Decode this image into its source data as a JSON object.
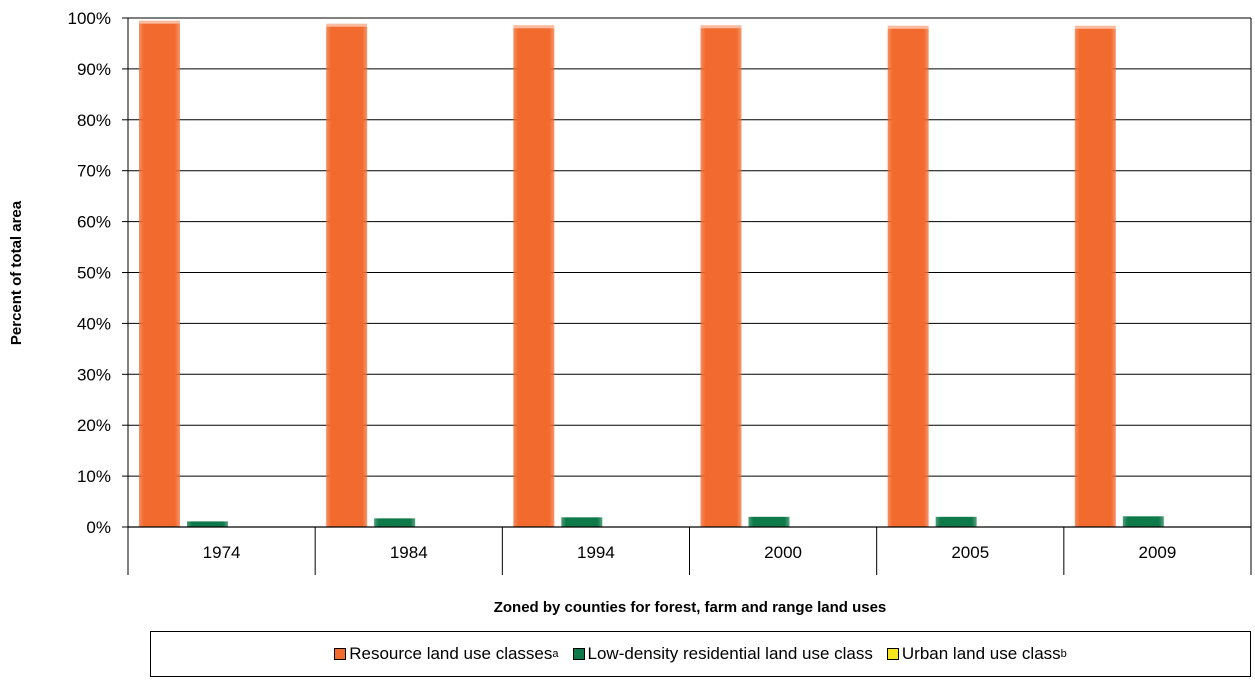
{
  "chart_data": {
    "type": "bar",
    "categories": [
      "1974",
      "1984",
      "1994",
      "2000",
      "2005",
      "2009"
    ],
    "series": [
      {
        "name": "Resource land use classes",
        "superscript": "a",
        "color": "#f26a2e",
        "values": [
          98.9,
          98.3,
          98.0,
          98.0,
          97.9,
          97.9
        ]
      },
      {
        "name": "Low-density residential land use class",
        "superscript": "",
        "color": "#0e7a4a",
        "values": [
          1.1,
          1.7,
          1.9,
          2.0,
          2.0,
          2.1
        ]
      },
      {
        "name": "Urban land use class",
        "superscript": "b",
        "color": "#f5e61d",
        "values": [
          0.05,
          0.05,
          0.1,
          0.1,
          0.1,
          0.1
        ]
      }
    ],
    "y_ticks": [
      "0%",
      "10%",
      "20%",
      "30%",
      "40%",
      "50%",
      "60%",
      "70%",
      "80%",
      "90%",
      "100%"
    ],
    "ylim": [
      0,
      100
    ],
    "xlabel": "Zoned by counties for forest, farm and range land uses",
    "ylabel": "Percent of total area",
    "grid": true,
    "legend_position": "bottom"
  }
}
